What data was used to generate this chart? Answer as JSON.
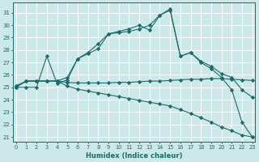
{
  "xlabel": "Humidex (Indice chaleur)",
  "bg_color": "#cce8e8",
  "line_color": "#1a6b6b",
  "grid_color": "#b8d8d8",
  "xlim": [
    -0.3,
    23.3
  ],
  "ylim": [
    20.6,
    31.8
  ],
  "yticks": [
    21,
    22,
    23,
    24,
    25,
    26,
    27,
    28,
    29,
    30,
    31
  ],
  "xticks": [
    0,
    1,
    2,
    3,
    4,
    5,
    6,
    7,
    8,
    9,
    10,
    11,
    12,
    13,
    14,
    15,
    16,
    17,
    18,
    19,
    20,
    21,
    22,
    23
  ],
  "series": [
    {
      "x": [
        0,
        1,
        2,
        3,
        4,
        5,
        6,
        7,
        8,
        9,
        10,
        11,
        12,
        13,
        14,
        15,
        16,
        17,
        18,
        19,
        20,
        21,
        22,
        23
      ],
      "y": [
        25,
        25,
        25,
        27.5,
        25.3,
        25.6,
        27.3,
        27.8,
        28.5,
        29.3,
        29.5,
        29.7,
        30.0,
        29.6,
        30.8,
        31.2,
        27.5,
        27.8,
        27.1,
        26.7,
        26.1,
        25.8,
        24.8,
        24.2
      ]
    },
    {
      "x": [
        0,
        1,
        2,
        3,
        4,
        5,
        6,
        7,
        8,
        9,
        10,
        11,
        12,
        13,
        14,
        15,
        16,
        17,
        18,
        19,
        20,
        21,
        22,
        23
      ],
      "y": [
        25,
        25.5,
        25.5,
        25.5,
        25.5,
        25.8,
        27.3,
        27.7,
        28.1,
        29.3,
        29.4,
        29.5,
        29.7,
        30.0,
        30.8,
        31.3,
        27.5,
        27.8,
        27.0,
        26.5,
        25.8,
        24.8,
        22.2,
        21.0
      ]
    },
    {
      "x": [
        0,
        1,
        2,
        3,
        4,
        5,
        6,
        7,
        8,
        9,
        10,
        11,
        12,
        13,
        14,
        15,
        16,
        17,
        18,
        19,
        20,
        21,
        22,
        23
      ],
      "y": [
        25.1,
        25.5,
        25.5,
        25.5,
        25.5,
        25.4,
        25.35,
        25.35,
        25.35,
        25.35,
        25.4,
        25.4,
        25.45,
        25.5,
        25.5,
        25.55,
        25.6,
        25.65,
        25.65,
        25.7,
        25.7,
        25.65,
        25.6,
        25.55
      ]
    },
    {
      "x": [
        0,
        1,
        2,
        3,
        4,
        5,
        6,
        7,
        8,
        9,
        10,
        11,
        12,
        13,
        14,
        15,
        16,
        17,
        18,
        19,
        20,
        21,
        22,
        23
      ],
      "y": [
        25.1,
        25.5,
        25.5,
        25.5,
        25.5,
        25.1,
        24.85,
        24.7,
        24.55,
        24.4,
        24.25,
        24.1,
        23.95,
        23.8,
        23.65,
        23.5,
        23.2,
        22.9,
        22.55,
        22.2,
        21.8,
        21.5,
        21.15,
        21.0
      ]
    }
  ]
}
